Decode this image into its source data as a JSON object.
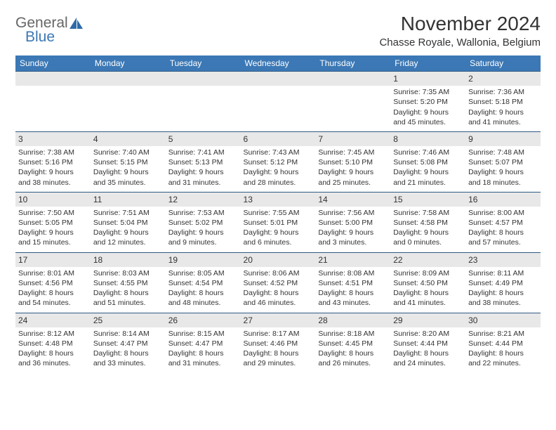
{
  "brand": {
    "line1": "General",
    "line2": "Blue"
  },
  "header": {
    "month_title": "November 2024",
    "location": "Chasse Royale, Wallonia, Belgium"
  },
  "colors": {
    "header_bg": "#3b78b5",
    "header_text": "#ffffff",
    "daynum_bg": "#e8e8e8",
    "row_border": "#2f5a86",
    "body_text": "#333333"
  },
  "day_names": [
    "Sunday",
    "Monday",
    "Tuesday",
    "Wednesday",
    "Thursday",
    "Friday",
    "Saturday"
  ],
  "weeks": [
    [
      {
        "n": "",
        "sr": "",
        "ss": "",
        "dl": ""
      },
      {
        "n": "",
        "sr": "",
        "ss": "",
        "dl": ""
      },
      {
        "n": "",
        "sr": "",
        "ss": "",
        "dl": ""
      },
      {
        "n": "",
        "sr": "",
        "ss": "",
        "dl": ""
      },
      {
        "n": "",
        "sr": "",
        "ss": "",
        "dl": ""
      },
      {
        "n": "1",
        "sr": "Sunrise: 7:35 AM",
        "ss": "Sunset: 5:20 PM",
        "dl": "Daylight: 9 hours and 45 minutes."
      },
      {
        "n": "2",
        "sr": "Sunrise: 7:36 AM",
        "ss": "Sunset: 5:18 PM",
        "dl": "Daylight: 9 hours and 41 minutes."
      }
    ],
    [
      {
        "n": "3",
        "sr": "Sunrise: 7:38 AM",
        "ss": "Sunset: 5:16 PM",
        "dl": "Daylight: 9 hours and 38 minutes."
      },
      {
        "n": "4",
        "sr": "Sunrise: 7:40 AM",
        "ss": "Sunset: 5:15 PM",
        "dl": "Daylight: 9 hours and 35 minutes."
      },
      {
        "n": "5",
        "sr": "Sunrise: 7:41 AM",
        "ss": "Sunset: 5:13 PM",
        "dl": "Daylight: 9 hours and 31 minutes."
      },
      {
        "n": "6",
        "sr": "Sunrise: 7:43 AM",
        "ss": "Sunset: 5:12 PM",
        "dl": "Daylight: 9 hours and 28 minutes."
      },
      {
        "n": "7",
        "sr": "Sunrise: 7:45 AM",
        "ss": "Sunset: 5:10 PM",
        "dl": "Daylight: 9 hours and 25 minutes."
      },
      {
        "n": "8",
        "sr": "Sunrise: 7:46 AM",
        "ss": "Sunset: 5:08 PM",
        "dl": "Daylight: 9 hours and 21 minutes."
      },
      {
        "n": "9",
        "sr": "Sunrise: 7:48 AM",
        "ss": "Sunset: 5:07 PM",
        "dl": "Daylight: 9 hours and 18 minutes."
      }
    ],
    [
      {
        "n": "10",
        "sr": "Sunrise: 7:50 AM",
        "ss": "Sunset: 5:05 PM",
        "dl": "Daylight: 9 hours and 15 minutes."
      },
      {
        "n": "11",
        "sr": "Sunrise: 7:51 AM",
        "ss": "Sunset: 5:04 PM",
        "dl": "Daylight: 9 hours and 12 minutes."
      },
      {
        "n": "12",
        "sr": "Sunrise: 7:53 AM",
        "ss": "Sunset: 5:02 PM",
        "dl": "Daylight: 9 hours and 9 minutes."
      },
      {
        "n": "13",
        "sr": "Sunrise: 7:55 AM",
        "ss": "Sunset: 5:01 PM",
        "dl": "Daylight: 9 hours and 6 minutes."
      },
      {
        "n": "14",
        "sr": "Sunrise: 7:56 AM",
        "ss": "Sunset: 5:00 PM",
        "dl": "Daylight: 9 hours and 3 minutes."
      },
      {
        "n": "15",
        "sr": "Sunrise: 7:58 AM",
        "ss": "Sunset: 4:58 PM",
        "dl": "Daylight: 9 hours and 0 minutes."
      },
      {
        "n": "16",
        "sr": "Sunrise: 8:00 AM",
        "ss": "Sunset: 4:57 PM",
        "dl": "Daylight: 8 hours and 57 minutes."
      }
    ],
    [
      {
        "n": "17",
        "sr": "Sunrise: 8:01 AM",
        "ss": "Sunset: 4:56 PM",
        "dl": "Daylight: 8 hours and 54 minutes."
      },
      {
        "n": "18",
        "sr": "Sunrise: 8:03 AM",
        "ss": "Sunset: 4:55 PM",
        "dl": "Daylight: 8 hours and 51 minutes."
      },
      {
        "n": "19",
        "sr": "Sunrise: 8:05 AM",
        "ss": "Sunset: 4:54 PM",
        "dl": "Daylight: 8 hours and 48 minutes."
      },
      {
        "n": "20",
        "sr": "Sunrise: 8:06 AM",
        "ss": "Sunset: 4:52 PM",
        "dl": "Daylight: 8 hours and 46 minutes."
      },
      {
        "n": "21",
        "sr": "Sunrise: 8:08 AM",
        "ss": "Sunset: 4:51 PM",
        "dl": "Daylight: 8 hours and 43 minutes."
      },
      {
        "n": "22",
        "sr": "Sunrise: 8:09 AM",
        "ss": "Sunset: 4:50 PM",
        "dl": "Daylight: 8 hours and 41 minutes."
      },
      {
        "n": "23",
        "sr": "Sunrise: 8:11 AM",
        "ss": "Sunset: 4:49 PM",
        "dl": "Daylight: 8 hours and 38 minutes."
      }
    ],
    [
      {
        "n": "24",
        "sr": "Sunrise: 8:12 AM",
        "ss": "Sunset: 4:48 PM",
        "dl": "Daylight: 8 hours and 36 minutes."
      },
      {
        "n": "25",
        "sr": "Sunrise: 8:14 AM",
        "ss": "Sunset: 4:47 PM",
        "dl": "Daylight: 8 hours and 33 minutes."
      },
      {
        "n": "26",
        "sr": "Sunrise: 8:15 AM",
        "ss": "Sunset: 4:47 PM",
        "dl": "Daylight: 8 hours and 31 minutes."
      },
      {
        "n": "27",
        "sr": "Sunrise: 8:17 AM",
        "ss": "Sunset: 4:46 PM",
        "dl": "Daylight: 8 hours and 29 minutes."
      },
      {
        "n": "28",
        "sr": "Sunrise: 8:18 AM",
        "ss": "Sunset: 4:45 PM",
        "dl": "Daylight: 8 hours and 26 minutes."
      },
      {
        "n": "29",
        "sr": "Sunrise: 8:20 AM",
        "ss": "Sunset: 4:44 PM",
        "dl": "Daylight: 8 hours and 24 minutes."
      },
      {
        "n": "30",
        "sr": "Sunrise: 8:21 AM",
        "ss": "Sunset: 4:44 PM",
        "dl": "Daylight: 8 hours and 22 minutes."
      }
    ]
  ]
}
